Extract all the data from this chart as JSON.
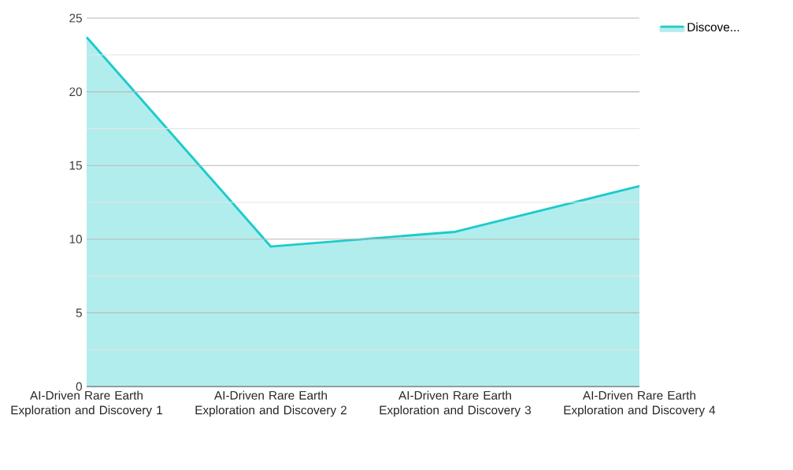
{
  "chart_data": {
    "type": "area",
    "categories": [
      "AI-Driven Rare Earth Exploration and Discovery 1",
      "AI-Driven Rare Earth Exploration and Discovery 2",
      "AI-Driven Rare Earth Exploration and Discovery 3",
      "AI-Driven Rare Earth Exploration and Discovery 4"
    ],
    "series": [
      {
        "name": "Discove...",
        "color": "#1ecbcb",
        "values": [
          23.7,
          9.5,
          10.5,
          13.6
        ]
      }
    ],
    "ylim": [
      0,
      25
    ],
    "yticks": [
      0,
      {
        "value": 2.5,
        "label": null
      },
      5,
      {
        "value": 7.5,
        "label": null
      },
      10,
      {
        "value": 12.5,
        "label": null
      },
      15,
      {
        "value": 17.5,
        "label": null
      },
      20,
      {
        "value": 22.5,
        "label": null
      },
      25
    ],
    "grid": "y",
    "legend": "top right"
  }
}
